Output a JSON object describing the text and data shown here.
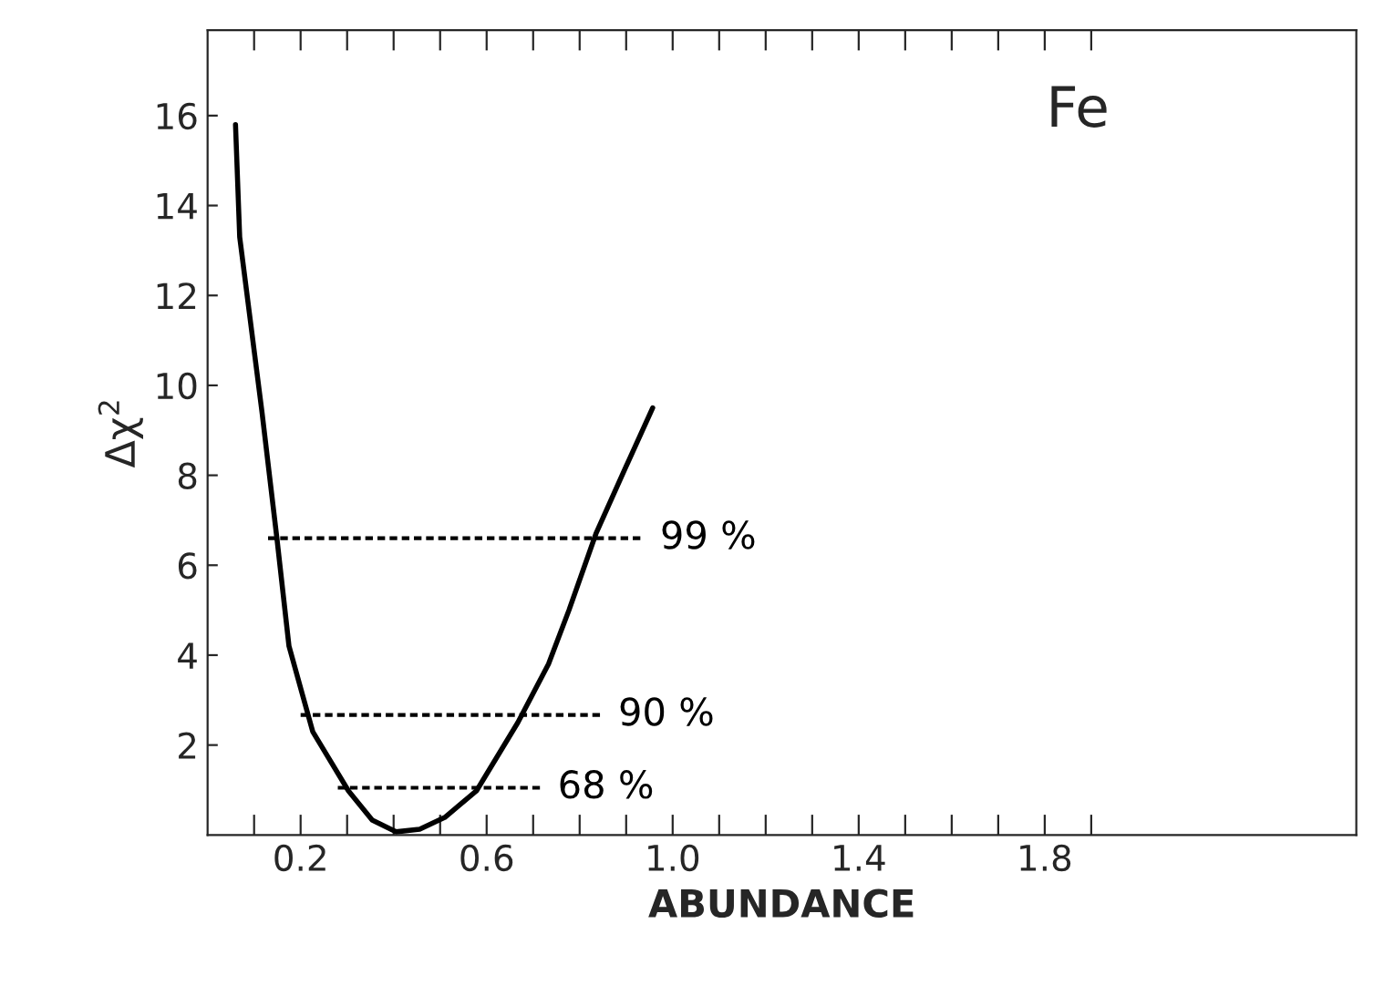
{
  "chart_data": {
    "type": "line",
    "xlabel": "ABUNDANCE",
    "ylabel": "Δχ$^{2}$",
    "annotations": [
      "Fe"
    ],
    "xlim": [
      0,
      2.47
    ],
    "ylim": [
      0,
      17.9
    ],
    "xticks": [
      {
        "value": 0.1,
        "label": null
      },
      0.2,
      {
        "value": 0.3,
        "label": null
      },
      {
        "value": 0.4,
        "label": null
      },
      {
        "value": 0.5,
        "label": null
      },
      0.6,
      {
        "value": 0.7,
        "label": null
      },
      {
        "value": 0.8,
        "label": null
      },
      {
        "value": 0.9,
        "label": null
      },
      {
        "value": 1.0,
        "label": "1.0"
      },
      {
        "value": 1.1,
        "label": null
      },
      {
        "value": 1.2,
        "label": null
      },
      {
        "value": 1.3,
        "label": null
      },
      1.4,
      {
        "value": 1.5,
        "label": null
      },
      {
        "value": 1.6,
        "label": null
      },
      {
        "value": 1.7,
        "label": null
      },
      1.8,
      {
        "value": 1.9,
        "label": null
      }
    ],
    "yticks": [
      2,
      4,
      6,
      8,
      10,
      12,
      14,
      16
    ],
    "grid": false,
    "legend": false,
    "series": [
      {
        "color": "#000000",
        "line_style": "solid",
        "x": [
          0.06,
          0.069,
          0.117,
          0.149,
          0.175,
          0.226,
          0.303,
          0.354,
          0.405,
          0.456,
          0.51,
          0.578,
          0.667,
          0.733,
          0.777,
          0.835,
          0.9,
          0.957
        ],
        "values": [
          15.8,
          13.3,
          9.4,
          6.6,
          4.2,
          2.3,
          0.98,
          0.33,
          0.07,
          0.13,
          0.39,
          0.98,
          2.5,
          3.8,
          5.0,
          6.7,
          8.2,
          9.5
        ]
      },
      {
        "name": "99 %",
        "color": "#000000",
        "line_style": "dashed",
        "x": [
          0.13,
          0.94
        ],
        "values": [
          6.6,
          6.6
        ]
      },
      {
        "name": "90 %",
        "color": "#000000",
        "line_style": "dashed",
        "x": [
          0.2,
          0.85
        ],
        "values": [
          2.67,
          2.67
        ]
      },
      {
        "name": "68 %",
        "color": "#000000",
        "line_style": "dashed",
        "x": [
          0.28,
          0.72
        ],
        "values": [
          1.05,
          1.05
        ]
      }
    ]
  }
}
